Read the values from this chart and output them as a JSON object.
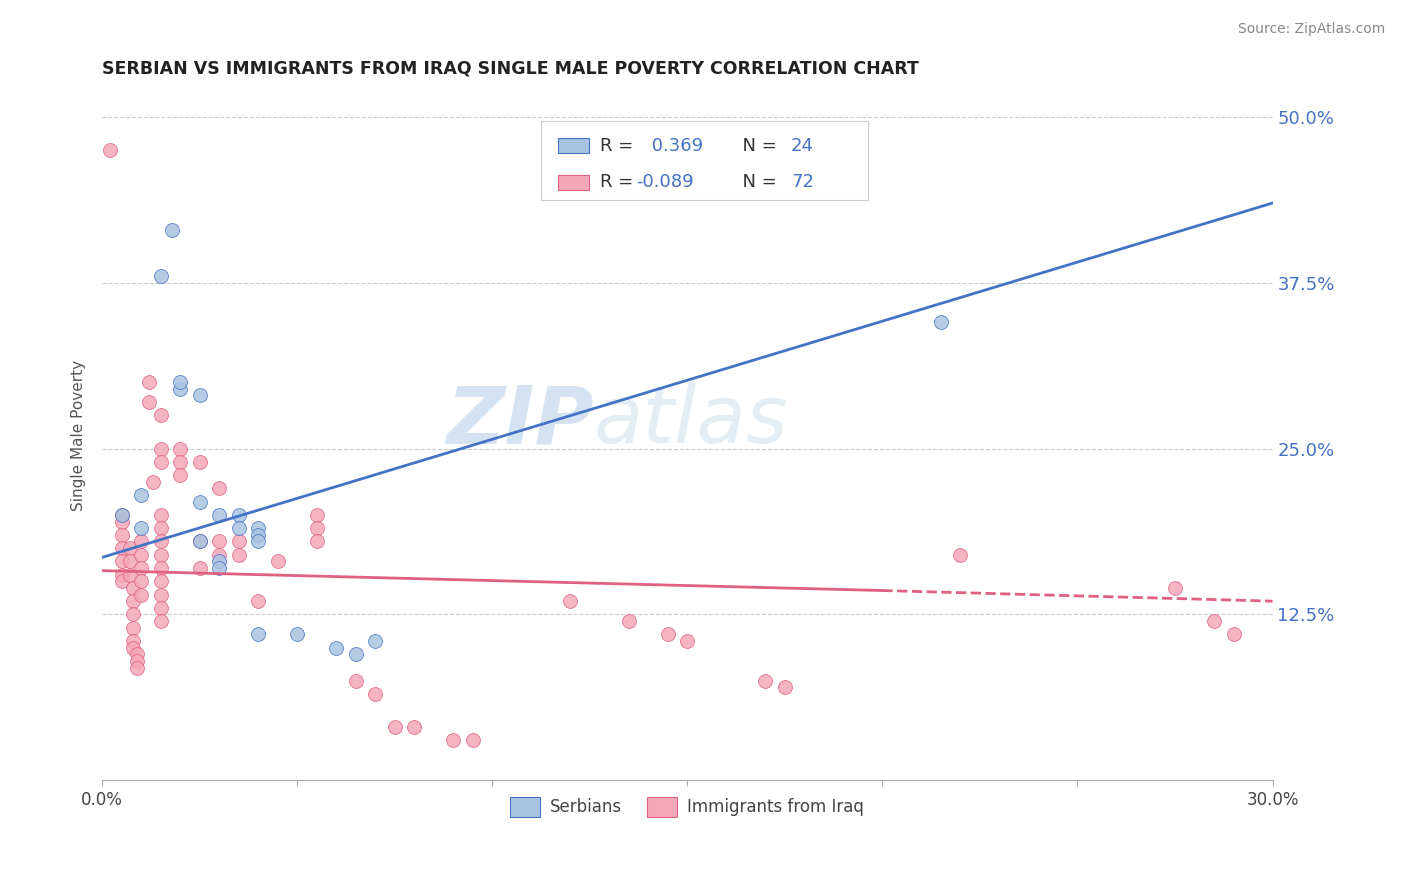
{
  "title": "SERBIAN VS IMMIGRANTS FROM IRAQ SINGLE MALE POVERTY CORRELATION CHART",
  "source": "Source: ZipAtlas.com",
  "ylabel": "Single Male Poverty",
  "ytick_labels": [
    "12.5%",
    "25.0%",
    "37.5%",
    "50.0%"
  ],
  "ytick_values": [
    0.125,
    0.25,
    0.375,
    0.5
  ],
  "xlim": [
    0.0,
    0.3
  ],
  "ylim": [
    0.0,
    0.52
  ],
  "serbian_color": "#a8c4e0",
  "serbian_line_color": "#4472c4",
  "iraq_color": "#f4a7b9",
  "iraq_line_color": "#e06080",
  "watermark_zip": "ZIP",
  "watermark_atlas": "atlas",
  "background_color": "#ffffff",
  "serbian_line_x0": 0.0,
  "serbian_line_y0": 0.168,
  "serbian_line_x1": 0.3,
  "serbian_line_y1": 0.435,
  "iraq_line_x0": 0.0,
  "iraq_line_y0": 0.158,
  "iraq_line_x1": 0.2,
  "iraq_line_y1": 0.143,
  "iraq_line_dash_x0": 0.2,
  "iraq_line_dash_y0": 0.143,
  "iraq_line_dash_x1": 0.3,
  "iraq_line_dash_y1": 0.135,
  "serbian_points": [
    [
      0.005,
      0.2
    ],
    [
      0.01,
      0.215
    ],
    [
      0.01,
      0.19
    ],
    [
      0.015,
      0.38
    ],
    [
      0.018,
      0.415
    ],
    [
      0.02,
      0.295
    ],
    [
      0.02,
      0.3
    ],
    [
      0.025,
      0.29
    ],
    [
      0.025,
      0.21
    ],
    [
      0.025,
      0.18
    ],
    [
      0.03,
      0.2
    ],
    [
      0.03,
      0.165
    ],
    [
      0.03,
      0.16
    ],
    [
      0.035,
      0.2
    ],
    [
      0.035,
      0.19
    ],
    [
      0.04,
      0.19
    ],
    [
      0.04,
      0.185
    ],
    [
      0.04,
      0.18
    ],
    [
      0.04,
      0.11
    ],
    [
      0.05,
      0.11
    ],
    [
      0.06,
      0.1
    ],
    [
      0.065,
      0.095
    ],
    [
      0.07,
      0.105
    ],
    [
      0.215,
      0.345
    ]
  ],
  "iraq_points": [
    [
      0.002,
      0.475
    ],
    [
      0.005,
      0.2
    ],
    [
      0.005,
      0.195
    ],
    [
      0.005,
      0.185
    ],
    [
      0.005,
      0.175
    ],
    [
      0.005,
      0.165
    ],
    [
      0.005,
      0.155
    ],
    [
      0.005,
      0.15
    ],
    [
      0.007,
      0.175
    ],
    [
      0.007,
      0.165
    ],
    [
      0.007,
      0.155
    ],
    [
      0.008,
      0.145
    ],
    [
      0.008,
      0.135
    ],
    [
      0.008,
      0.125
    ],
    [
      0.008,
      0.115
    ],
    [
      0.008,
      0.105
    ],
    [
      0.008,
      0.1
    ],
    [
      0.009,
      0.095
    ],
    [
      0.009,
      0.09
    ],
    [
      0.009,
      0.085
    ],
    [
      0.01,
      0.18
    ],
    [
      0.01,
      0.17
    ],
    [
      0.01,
      0.16
    ],
    [
      0.01,
      0.15
    ],
    [
      0.01,
      0.14
    ],
    [
      0.012,
      0.3
    ],
    [
      0.012,
      0.285
    ],
    [
      0.013,
      0.225
    ],
    [
      0.015,
      0.275
    ],
    [
      0.015,
      0.25
    ],
    [
      0.015,
      0.24
    ],
    [
      0.015,
      0.2
    ],
    [
      0.015,
      0.19
    ],
    [
      0.015,
      0.18
    ],
    [
      0.015,
      0.17
    ],
    [
      0.015,
      0.16
    ],
    [
      0.015,
      0.15
    ],
    [
      0.015,
      0.14
    ],
    [
      0.015,
      0.13
    ],
    [
      0.015,
      0.12
    ],
    [
      0.02,
      0.25
    ],
    [
      0.02,
      0.24
    ],
    [
      0.02,
      0.23
    ],
    [
      0.025,
      0.24
    ],
    [
      0.025,
      0.18
    ],
    [
      0.025,
      0.16
    ],
    [
      0.03,
      0.22
    ],
    [
      0.03,
      0.18
    ],
    [
      0.03,
      0.17
    ],
    [
      0.035,
      0.18
    ],
    [
      0.035,
      0.17
    ],
    [
      0.04,
      0.135
    ],
    [
      0.045,
      0.165
    ],
    [
      0.055,
      0.2
    ],
    [
      0.055,
      0.19
    ],
    [
      0.055,
      0.18
    ],
    [
      0.065,
      0.075
    ],
    [
      0.07,
      0.065
    ],
    [
      0.075,
      0.04
    ],
    [
      0.08,
      0.04
    ],
    [
      0.09,
      0.03
    ],
    [
      0.095,
      0.03
    ],
    [
      0.12,
      0.135
    ],
    [
      0.135,
      0.12
    ],
    [
      0.145,
      0.11
    ],
    [
      0.15,
      0.105
    ],
    [
      0.17,
      0.075
    ],
    [
      0.175,
      0.07
    ],
    [
      0.22,
      0.17
    ],
    [
      0.275,
      0.145
    ],
    [
      0.285,
      0.12
    ],
    [
      0.29,
      0.11
    ]
  ]
}
